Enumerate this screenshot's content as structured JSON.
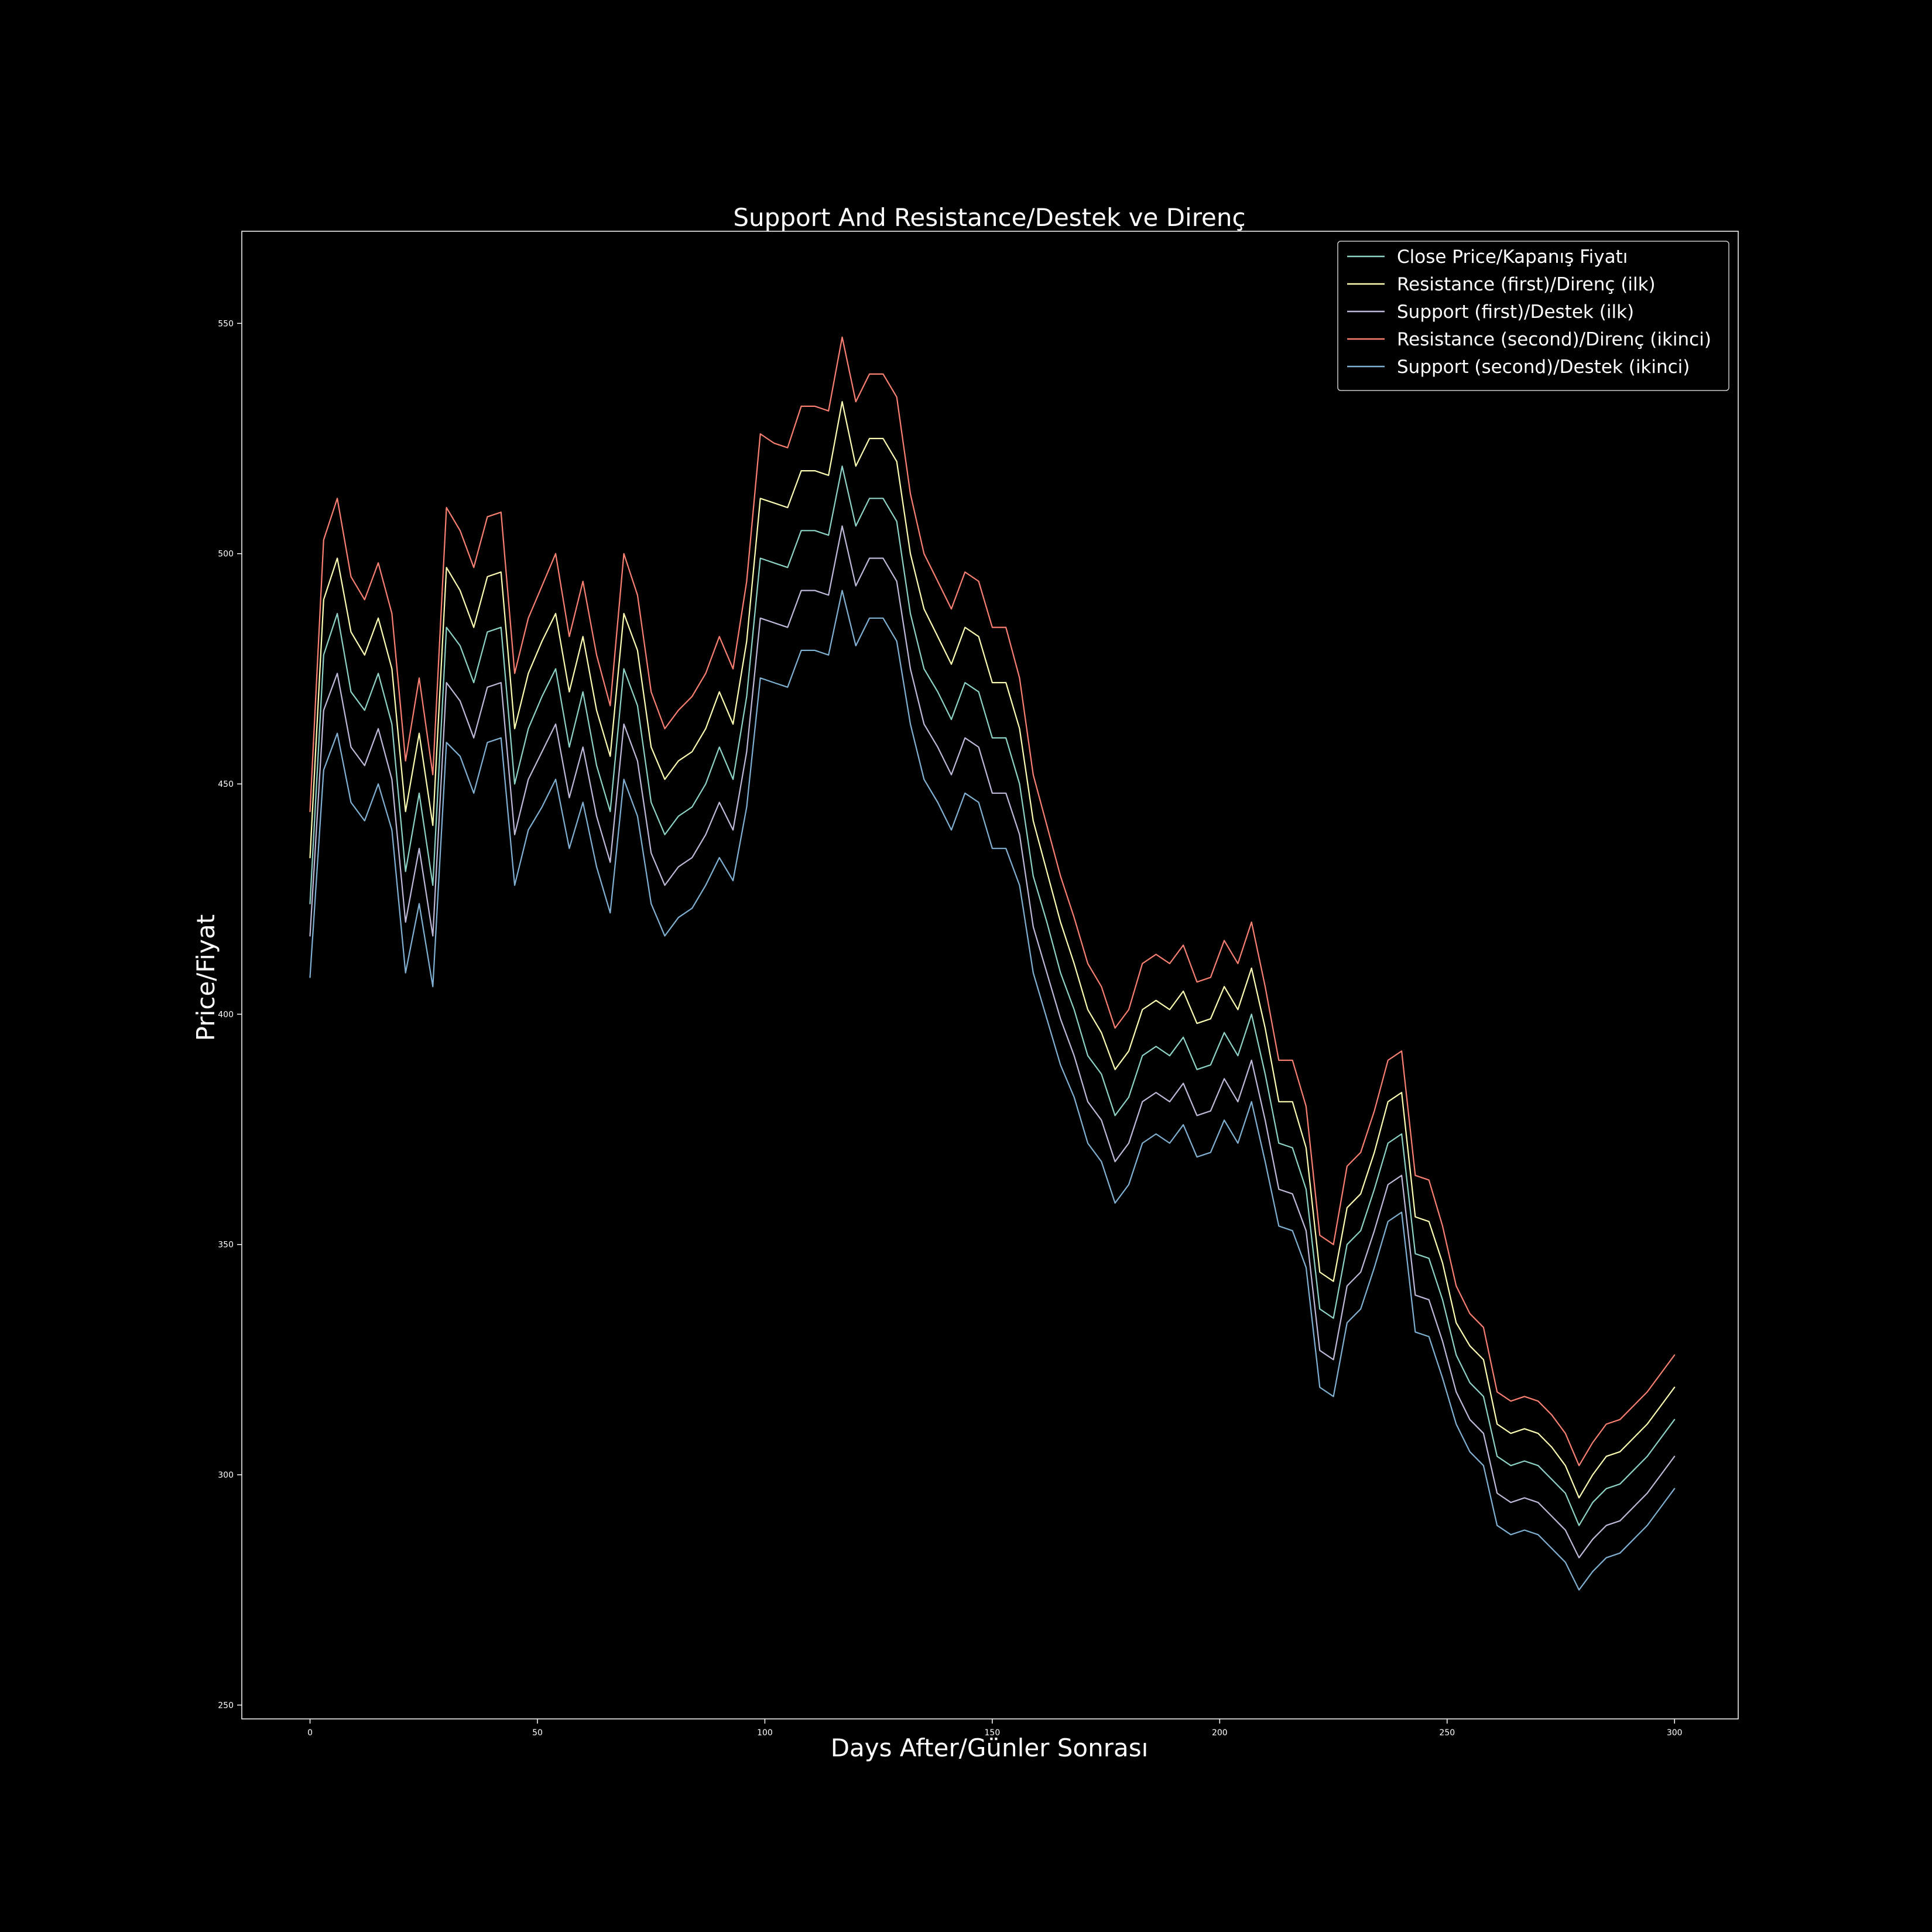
{
  "chart_data": {
    "type": "line",
    "title": "Support And Resistance/Destek ve Direnç",
    "xlabel": "Days After/Günler Sonrası",
    "ylabel": "Price/Fiyat",
    "xlim": [
      -15,
      314
    ],
    "ylim": [
      247,
      570
    ],
    "xticks": [
      0,
      50,
      100,
      150,
      200,
      250,
      300
    ],
    "yticks": [
      250,
      300,
      350,
      400,
      450,
      500,
      550
    ],
    "grid": false,
    "legend_position": "top-right",
    "x_start": 0,
    "x_step": 3,
    "series": [
      {
        "name": "Close Price/Kapanış Fiyatı",
        "color": "#8dd3c7",
        "values": [
          424,
          478,
          487,
          470,
          466,
          474,
          463,
          431,
          448,
          428,
          484,
          480,
          472,
          483,
          484,
          450,
          462,
          469,
          475,
          458,
          470,
          454,
          444,
          475,
          467,
          446,
          439,
          443,
          445,
          450,
          458,
          451,
          469,
          499,
          498,
          497,
          505,
          505,
          504,
          519,
          506,
          512,
          512,
          507,
          487,
          475,
          470,
          464,
          472,
          470,
          460,
          460,
          450,
          430,
          420,
          409,
          401,
          391,
          387,
          378,
          382,
          391,
          393,
          391,
          395,
          388,
          389,
          396,
          391,
          400,
          387,
          372,
          371,
          362,
          336,
          334,
          350,
          353,
          362,
          372,
          374,
          348,
          347,
          338,
          326,
          320,
          317,
          304,
          302,
          303,
          302,
          299,
          296,
          289,
          294,
          297,
          298,
          301,
          304,
          308,
          312
        ]
      },
      {
        "name": "Resistance (first)/Direnç (ilk)",
        "color": "#ffffb3",
        "values": [
          434,
          490,
          499,
          483,
          478,
          486,
          475,
          444,
          461,
          441,
          497,
          492,
          484,
          495,
          496,
          462,
          474,
          481,
          487,
          470,
          482,
          466,
          456,
          487,
          479,
          458,
          451,
          455,
          457,
          462,
          470,
          463,
          481,
          512,
          511,
          510,
          518,
          518,
          517,
          533,
          519,
          525,
          525,
          520,
          500,
          488,
          482,
          476,
          484,
          482,
          472,
          472,
          462,
          442,
          431,
          420,
          411,
          401,
          396,
          388,
          392,
          401,
          403,
          401,
          405,
          398,
          399,
          406,
          401,
          410,
          397,
          381,
          381,
          371,
          344,
          342,
          358,
          361,
          370,
          381,
          383,
          356,
          355,
          346,
          333,
          328,
          325,
          311,
          309,
          310,
          309,
          306,
          302,
          295,
          300,
          304,
          305,
          308,
          311,
          315,
          319
        ]
      },
      {
        "name": "Support (first)/Destek (ilk)",
        "color": "#bebada",
        "values": [
          417,
          466,
          474,
          458,
          454,
          462,
          451,
          420,
          436,
          417,
          472,
          468,
          460,
          471,
          472,
          439,
          451,
          457,
          463,
          447,
          458,
          443,
          433,
          463,
          455,
          435,
          428,
          432,
          434,
          439,
          446,
          440,
          457,
          486,
          485,
          484,
          492,
          492,
          491,
          506,
          493,
          499,
          499,
          494,
          475,
          463,
          458,
          452,
          460,
          458,
          448,
          448,
          439,
          419,
          409,
          399,
          391,
          381,
          377,
          368,
          372,
          381,
          383,
          381,
          385,
          378,
          379,
          386,
          381,
          390,
          377,
          362,
          361,
          353,
          327,
          325,
          341,
          344,
          353,
          363,
          365,
          339,
          338,
          329,
          318,
          312,
          309,
          296,
          294,
          295,
          294,
          291,
          288,
          282,
          286,
          289,
          290,
          293,
          296,
          300,
          304
        ]
      },
      {
        "name": "Resistance (second)/Direnç (ikinci)",
        "color": "#fb8072",
        "values": [
          444,
          503,
          512,
          495,
          490,
          498,
          487,
          455,
          473,
          452,
          510,
          505,
          497,
          508,
          509,
          474,
          486,
          493,
          500,
          482,
          494,
          478,
          467,
          500,
          491,
          470,
          462,
          466,
          469,
          474,
          482,
          475,
          494,
          526,
          524,
          523,
          532,
          532,
          531,
          547,
          533,
          539,
          539,
          534,
          513,
          500,
          494,
          488,
          496,
          494,
          484,
          484,
          473,
          452,
          441,
          430,
          421,
          411,
          406,
          397,
          401,
          411,
          413,
          411,
          415,
          407,
          408,
          416,
          411,
          420,
          406,
          390,
          390,
          380,
          352,
          350,
          367,
          370,
          379,
          390,
          392,
          365,
          364,
          354,
          341,
          335,
          332,
          318,
          316,
          317,
          316,
          313,
          309,
          302,
          307,
          311,
          312,
          315,
          318,
          322,
          326
        ]
      },
      {
        "name": "Support (second)/Destek (ikinci)",
        "color": "#80b1d3",
        "values": [
          408,
          453,
          461,
          446,
          442,
          450,
          440,
          409,
          424,
          406,
          459,
          456,
          448,
          459,
          460,
          428,
          440,
          445,
          451,
          436,
          446,
          432,
          422,
          451,
          443,
          424,
          417,
          421,
          423,
          428,
          434,
          429,
          445,
          473,
          472,
          471,
          479,
          479,
          478,
          492,
          480,
          486,
          486,
          481,
          463,
          451,
          446,
          440,
          448,
          446,
          436,
          436,
          428,
          409,
          399,
          389,
          382,
          372,
          368,
          359,
          363,
          372,
          374,
          372,
          376,
          369,
          370,
          377,
          372,
          381,
          368,
          354,
          353,
          345,
          319,
          317,
          333,
          336,
          345,
          355,
          357,
          331,
          330,
          321,
          311,
          305,
          302,
          289,
          287,
          288,
          287,
          284,
          281,
          275,
          279,
          282,
          283,
          286,
          289,
          293,
          297
        ]
      }
    ]
  }
}
